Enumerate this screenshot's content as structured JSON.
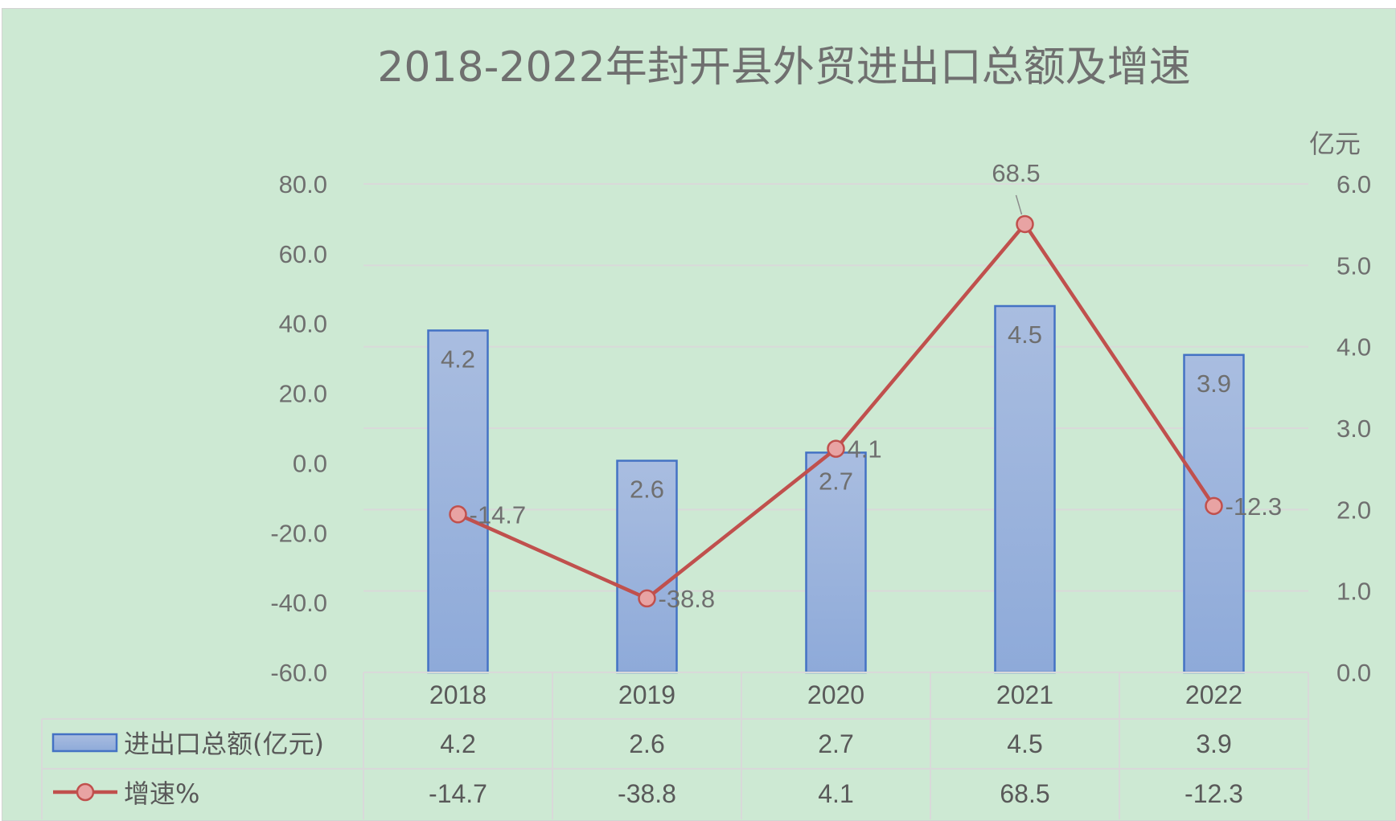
{
  "chart_data": {
    "type": "bar",
    "title": "2018-2022年封开县外贸进出口总额及增速",
    "categories": [
      "2018",
      "2019",
      "2020",
      "2021",
      "2022"
    ],
    "series": [
      {
        "name": "进出口总额(亿元)",
        "type": "bar",
        "axis": "right",
        "values": [
          4.2,
          2.6,
          2.7,
          4.5,
          3.9
        ],
        "labels": [
          "4.2",
          "2.6",
          "2.7",
          "4.5",
          "3.9"
        ],
        "color": "#95aedb",
        "border": "#4472c4"
      },
      {
        "name": "增速%",
        "type": "line",
        "axis": "left",
        "values": [
          -14.7,
          -38.8,
          4.1,
          68.5,
          -12.3
        ],
        "labels": [
          "-14.7",
          "-38.8",
          "4.1",
          "68.5",
          "-12.3"
        ],
        "color": "#c0504d",
        "marker_fill": "#e8a3a3"
      }
    ],
    "left_axis": {
      "range": [
        -60,
        80
      ],
      "ticks": [
        "80.0",
        "60.0",
        "40.0",
        "20.0",
        "0.0",
        "-20.0",
        "-40.0",
        "-60.0"
      ]
    },
    "right_axis": {
      "unit": "亿元",
      "range": [
        0,
        6
      ],
      "ticks": [
        "6.0",
        "5.0",
        "4.0",
        "3.0",
        "2.0",
        "1.0",
        "0.0"
      ]
    },
    "grid": true,
    "data_table": true,
    "colors": {
      "background": "#cde9d3",
      "grid": "#d9d9d9",
      "text": "#6f6f6f"
    }
  }
}
